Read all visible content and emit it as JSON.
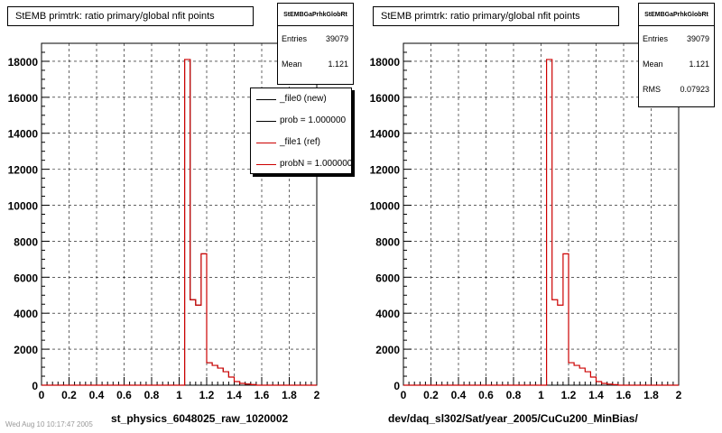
{
  "chart_data": [
    {
      "type": "bar",
      "title": "StEMB primtrk: ratio primary/global nfit points",
      "xlabel": "st_physics_6048025_raw_1020002",
      "ylabel": "",
      "xlim": [
        0,
        2
      ],
      "ylim": [
        0,
        19000
      ],
      "x_ticks": [
        "0",
        "0.2",
        "0.4",
        "0.6",
        "0.8",
        "1",
        "1.2",
        "1.4",
        "1.6",
        "1.8",
        "2"
      ],
      "y_ticks": [
        "0",
        "2000",
        "4000",
        "6000",
        "8000",
        "10000",
        "12000",
        "14000",
        "16000",
        "18000"
      ],
      "grid": true,
      "bin_edges": [
        1.0,
        1.04,
        1.08,
        1.12,
        1.16,
        1.2,
        1.24,
        1.28,
        1.32,
        1.36,
        1.4,
        1.44,
        1.48,
        1.52,
        1.56
      ],
      "series": [
        {
          "name": "_file0 (new)",
          "color": "#000000",
          "values": [
            0,
            18100,
            4750,
            4450,
            7300,
            1250,
            1100,
            950,
            750,
            450,
            200,
            100,
            60,
            30
          ]
        },
        {
          "name": "_file1 (ref)",
          "color": "#cc0000",
          "values": [
            0,
            18100,
            4750,
            4450,
            7300,
            1250,
            1100,
            950,
            750,
            450,
            200,
            100,
            60,
            30
          ]
        }
      ],
      "stats": {
        "header": "StEMBGaPrhkGlobRt",
        "entries_label": "Entries",
        "entries": "39079",
        "mean_label": "Mean",
        "mean": "1.121"
      },
      "legend": {
        "position": "top-right",
        "entries": [
          {
            "label": "_file0 (new)",
            "color": "#000000"
          },
          {
            "label": "prob = 1.000000",
            "color": "#000000"
          },
          {
            "label": "_file1 (ref)",
            "color": "#cc0000"
          },
          {
            "label": "probN = 1.000000",
            "color": "#cc0000"
          }
        ]
      }
    },
    {
      "type": "bar",
      "title": "StEMB primtrk: ratio primary/global nfit points",
      "xlabel": "dev/daq_sl302/Sat/year_2005/CuCu200_MinBias/",
      "ylabel": "",
      "xlim": [
        0,
        2
      ],
      "ylim": [
        0,
        19000
      ],
      "x_ticks": [
        "0",
        "0.2",
        "0.4",
        "0.6",
        "0.8",
        "1",
        "1.2",
        "1.4",
        "1.6",
        "1.8",
        "2"
      ],
      "y_ticks": [
        "0",
        "2000",
        "4000",
        "6000",
        "8000",
        "10000",
        "12000",
        "14000",
        "16000",
        "18000"
      ],
      "grid": true,
      "bin_edges": [
        1.0,
        1.04,
        1.08,
        1.12,
        1.16,
        1.2,
        1.24,
        1.28,
        1.32,
        1.36,
        1.4,
        1.44,
        1.48,
        1.52,
        1.56
      ],
      "series": [
        {
          "color": "#cc0000",
          "values": [
            0,
            18100,
            4750,
            4450,
            7300,
            1250,
            1100,
            950,
            750,
            450,
            200,
            100,
            60,
            30
          ]
        }
      ],
      "stats": {
        "header": "StEMBGaPrhkGlobRt",
        "entries_label": "Entries",
        "entries": "39079",
        "mean_label": "Mean",
        "mean": "1.121",
        "rms_label": "RMS",
        "rms": "0.07923"
      }
    }
  ],
  "footer": "Wed Aug 10 10:17:47 2005"
}
